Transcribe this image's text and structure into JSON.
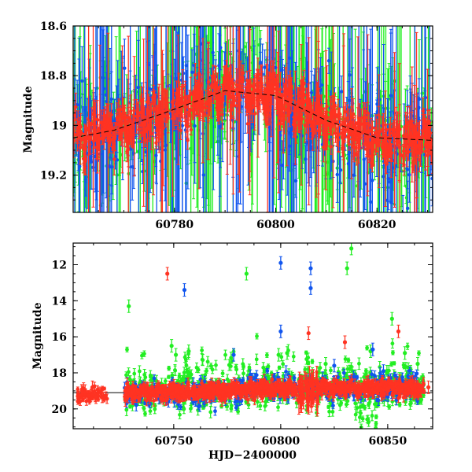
{
  "colors": {
    "green": "#22ee22",
    "blue": "#1155ee",
    "red": "#ff3322",
    "trend": "#000000"
  },
  "chart_data": [
    {
      "type": "scatter",
      "panel": "top",
      "title": "",
      "xlabel": "",
      "ylabel": "Magnitude",
      "xlim": [
        60760,
        60831
      ],
      "ylim": [
        19.35,
        18.6
      ],
      "inverted_y": true,
      "grid": false,
      "xticks": [
        60780,
        60800,
        60820
      ],
      "yticks": [
        18.6,
        18.8,
        19,
        19.2
      ],
      "series": [
        {
          "color": "green",
          "marker": "circle-errorbar"
        },
        {
          "color": "blue",
          "marker": "circle-errorbar"
        },
        {
          "color": "red",
          "marker": "circle-errorbar"
        }
      ],
      "trend": {
        "style": "dashed",
        "x": [
          60760,
          60768,
          60778,
          60790,
          60800,
          60810,
          60820,
          60831
        ],
        "y": [
          19.05,
          19.02,
          18.95,
          18.86,
          18.88,
          18.98,
          19.05,
          19.06
        ]
      }
    },
    {
      "type": "scatter",
      "panel": "bottom",
      "title": "",
      "xlabel": "HJD−2400000",
      "ylabel": "Magnitude",
      "xlim": [
        60703,
        60871
      ],
      "ylim": [
        21.1,
        10.8
      ],
      "inverted_y": true,
      "grid": false,
      "xticks": [
        60750,
        60800,
        60850
      ],
      "yticks": [
        12,
        14,
        16,
        18,
        20
      ],
      "reference_line": 19.1,
      "series": [
        {
          "color": "green",
          "outliers": [
            [
              60729,
              14.3
            ],
            [
              60749,
              16.5
            ],
            [
              60751,
              17.0
            ],
            [
              60757,
              16.8
            ],
            [
              60784,
              12.5
            ],
            [
              60799,
              17.0
            ],
            [
              60803,
              16.9
            ],
            [
              60821,
              17.5
            ],
            [
              60831,
              12.2
            ],
            [
              60833,
              11.1
            ],
            [
              60842,
              16.8
            ],
            [
              60852,
              15.0
            ],
            [
              60858,
              16.9
            ],
            [
              60864,
              17.5
            ]
          ]
        },
        {
          "color": "blue",
          "outliers": [
            [
              60755,
              13.4
            ],
            [
              60778,
              17.0
            ],
            [
              60800,
              11.9
            ],
            [
              60800,
              15.7
            ],
            [
              60814,
              12.2
            ],
            [
              60814,
              13.3
            ],
            [
              60825,
              17.6
            ],
            [
              60843,
              16.7
            ],
            [
              60848,
              17.9
            ]
          ]
        },
        {
          "color": "red",
          "outliers": [
            [
              60707,
              19.0
            ],
            [
              60712,
              18.8
            ],
            [
              60747,
              12.5
            ],
            [
              60813,
              15.8
            ],
            [
              60830,
              16.3
            ],
            [
              60855,
              15.7
            ],
            [
              60869,
              18.8
            ]
          ]
        }
      ]
    }
  ],
  "seed": 7
}
